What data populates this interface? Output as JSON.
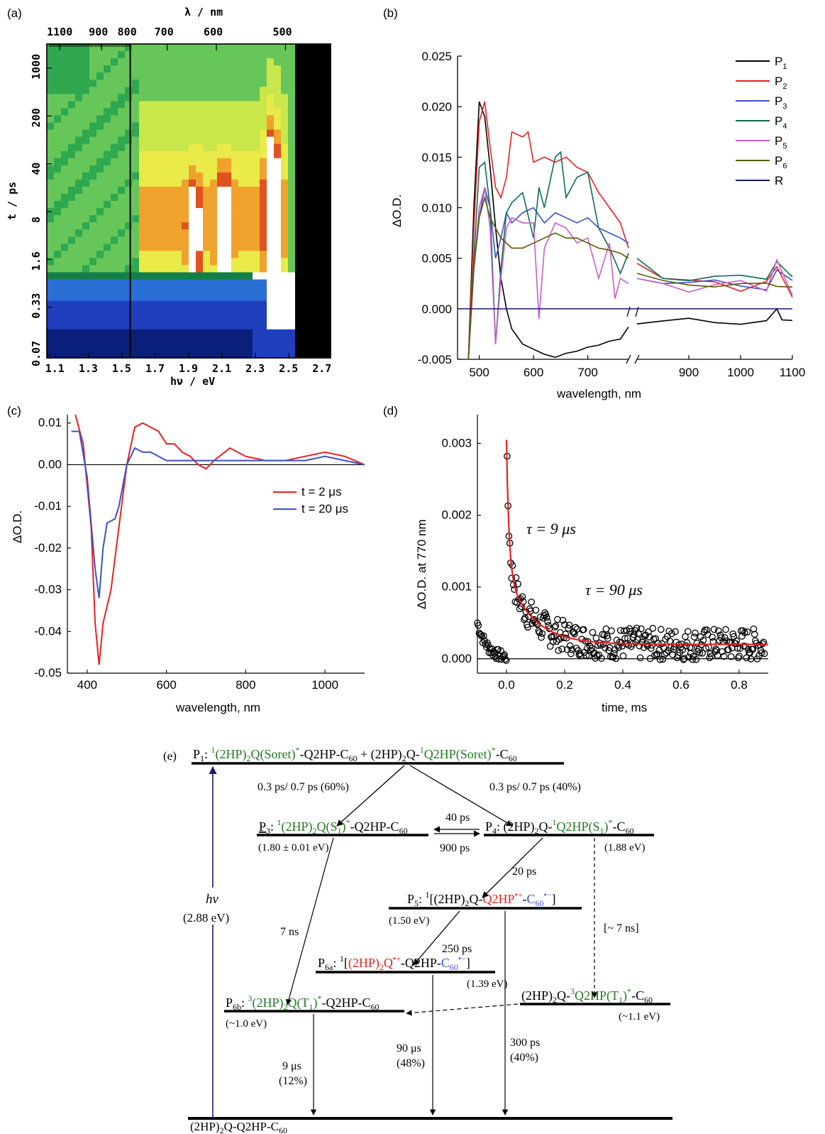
{
  "chart_data": [
    {
      "panel": "(a)",
      "type": "heatmap",
      "xlabel": "hν / eV",
      "top_label": "λ / nm",
      "ylabel": "t / ps",
      "x_ticks": [
        "1.1",
        "1.3",
        "1.5",
        "1.7",
        "1.9",
        "2.1",
        "2.3",
        "2.5",
        "2.7"
      ],
      "top_ticks": [
        "1100",
        "900",
        "800",
        "700",
        "600",
        "500"
      ],
      "y_ticks": [
        "0.07",
        "0.33",
        "1.6",
        "8",
        "40",
        "200",
        "1000"
      ],
      "xlim": [
        1.05,
        2.75
      ],
      "marker_line_eV": 1.55,
      "colors": [
        "#0a1f7a",
        "#1f3fbf",
        "#2a6fd6",
        "#127f4a",
        "#2fa84f",
        "#66c659",
        "#c9e64a",
        "#eaea48",
        "#f0a32c",
        "#e0521f",
        "#ffffff",
        "#000000"
      ]
    },
    {
      "panel": "(b)",
      "type": "line",
      "xlabel": "wavelength, nm",
      "ylabel": "ΔO.D.",
      "x_ticks": [
        "500",
        "600",
        "700",
        "900",
        "1000",
        "1100"
      ],
      "y_ticks": [
        "-0.005",
        "0.000",
        "0.005",
        "0.010",
        "0.015",
        "0.020",
        "0.025"
      ],
      "ylim": [
        -0.005,
        0.025
      ],
      "x_break": [
        775,
        800
      ],
      "series": [
        {
          "name": "P",
          "sub": "1",
          "color": "#000000",
          "x": [
            480,
            490,
            500,
            510,
            520,
            530,
            540,
            550,
            560,
            580,
            600,
            620,
            640,
            660,
            680,
            700,
            720,
            740,
            760,
            775,
            800,
            850,
            900,
            950,
            1000,
            1050,
            1070,
            1080,
            1100
          ],
          "y": [
            -0.005,
            0.01,
            0.0205,
            0.019,
            0.014,
            0.008,
            0.003,
            0.0,
            -0.002,
            -0.0035,
            -0.004,
            -0.0045,
            -0.0048,
            -0.0044,
            -0.0042,
            -0.0038,
            -0.0036,
            -0.0032,
            -0.003,
            -0.0018,
            -0.0015,
            -0.0012,
            -0.0012,
            -0.0012,
            -0.0012,
            -0.0012,
            0.0002,
            -0.0014,
            -0.0015
          ]
        },
        {
          "name": "P",
          "sub": "2",
          "color": "#e8211f",
          "x": [
            480,
            490,
            500,
            510,
            520,
            530,
            540,
            550,
            560,
            580,
            590,
            600,
            620,
            640,
            660,
            680,
            700,
            720,
            740,
            760,
            775,
            800,
            850,
            900,
            950,
            1000,
            1050,
            1070,
            1100
          ],
          "y": [
            -0.005,
            0.008,
            0.0185,
            0.0205,
            0.016,
            0.012,
            0.011,
            0.013,
            0.0175,
            0.017,
            0.0175,
            0.0145,
            0.015,
            0.0145,
            0.015,
            0.014,
            0.0135,
            0.0115,
            0.01,
            0.0085,
            0.006,
            0.0045,
            0.003,
            0.0025,
            0.0025,
            0.002,
            0.003,
            0.0045,
            0.001
          ]
        },
        {
          "name": "P",
          "sub": "3",
          "color": "#3c50c8",
          "x": [
            480,
            490,
            500,
            510,
            520,
            530,
            540,
            550,
            560,
            580,
            600,
            620,
            640,
            660,
            680,
            700,
            720,
            740,
            760,
            775,
            800,
            850,
            900,
            950,
            1000,
            1050,
            1070,
            1100
          ],
          "y": [
            -0.005,
            0.004,
            0.009,
            0.012,
            0.01,
            0.005,
            0.007,
            0.0095,
            0.0085,
            0.0095,
            0.01,
            0.0085,
            0.0095,
            0.009,
            0.0085,
            0.009,
            0.008,
            0.0075,
            0.007,
            0.0065,
            0.003,
            0.0025,
            0.0025,
            0.0025,
            0.0022,
            0.0022,
            0.004,
            0.003
          ]
        },
        {
          "name": "P",
          "sub": "4",
          "color": "#0f6b57",
          "x": [
            480,
            490,
            500,
            510,
            520,
            530,
            540,
            550,
            560,
            580,
            600,
            610,
            620,
            640,
            650,
            660,
            680,
            700,
            720,
            740,
            760,
            775,
            800,
            850,
            900,
            950,
            1000,
            1050,
            1070,
            1100
          ],
          "y": [
            -0.005,
            0.005,
            0.014,
            0.0145,
            0.01,
            -0.0035,
            0.004,
            0.0095,
            0.0105,
            0.0115,
            0.007,
            0.012,
            0.01,
            0.015,
            0.0155,
            0.011,
            0.013,
            0.0135,
            0.008,
            0.006,
            0.0035,
            0.0055,
            0.005,
            0.003,
            0.003,
            0.003,
            0.003,
            0.003,
            0.0045,
            0.0035
          ]
        },
        {
          "name": "P",
          "sub": "5",
          "color": "#c85ec8",
          "x": [
            480,
            490,
            500,
            510,
            520,
            530,
            540,
            550,
            560,
            580,
            600,
            610,
            620,
            640,
            660,
            680,
            700,
            720,
            740,
            750,
            760,
            775,
            800,
            850,
            900,
            950,
            1000,
            1050,
            1070,
            1100
          ],
          "y": [
            -0.005,
            0.004,
            0.01,
            0.012,
            0.008,
            -0.0035,
            0.003,
            0.008,
            0.009,
            0.0085,
            0.0085,
            -0.001,
            0.006,
            0.0085,
            0.008,
            0.0065,
            0.007,
            0.003,
            0.0065,
            0.001,
            0.003,
            0.0025,
            0.003,
            0.0025,
            0.002,
            0.0025,
            0.0025,
            0.0015,
            0.0045,
            0.0015
          ]
        },
        {
          "name": "P",
          "sub": "6",
          "color": "#5a5a00",
          "x": [
            480,
            490,
            500,
            510,
            520,
            530,
            540,
            550,
            560,
            580,
            600,
            620,
            640,
            660,
            680,
            700,
            720,
            740,
            760,
            775,
            800,
            850,
            900,
            950,
            1000,
            1050,
            1070,
            1100
          ],
          "y": [
            -0.005,
            0.004,
            0.009,
            0.011,
            0.009,
            0.008,
            0.007,
            0.0065,
            0.006,
            0.006,
            0.0065,
            0.007,
            0.0075,
            0.007,
            0.007,
            0.0065,
            0.006,
            0.0058,
            0.0055,
            0.005,
            0.0035,
            0.0028,
            0.0025,
            0.0025,
            0.0025,
            0.0022,
            0.002,
            0.002
          ]
        },
        {
          "name": "R",
          "sub": "",
          "color": "#1a1a6e",
          "x": [
            480,
            1100
          ],
          "y": [
            0,
            0
          ]
        }
      ]
    },
    {
      "panel": "(c)",
      "type": "line",
      "xlabel": "wavelength, nm",
      "ylabel": "ΔO.D.",
      "x_ticks": [
        "400",
        "600",
        "800",
        "1000"
      ],
      "y_ticks": [
        "-0.05",
        "-0.04",
        "-0.03",
        "-0.02",
        "-0.01",
        "0.00",
        "0.01"
      ],
      "xlim": [
        350,
        1100
      ],
      "ylim": [
        -0.05,
        0.012
      ],
      "series": [
        {
          "name": "t = 2 μs",
          "color": "#e8211f",
          "x": [
            370,
            390,
            410,
            420,
            430,
            440,
            460,
            480,
            500,
            520,
            540,
            560,
            580,
            600,
            620,
            640,
            660,
            680,
            700,
            720,
            760,
            800,
            850,
            900,
            950,
            1000,
            1050,
            1100
          ],
          "y": [
            0.012,
            0.005,
            -0.015,
            -0.038,
            -0.048,
            -0.038,
            -0.03,
            -0.015,
            0.0,
            0.009,
            0.01,
            0.009,
            0.008,
            0.005,
            0.005,
            0.003,
            0.002,
            0.0,
            -0.001,
            0.001,
            0.004,
            0.002,
            0.001,
            0.001,
            0.002,
            0.003,
            0.002,
            0.0
          ]
        },
        {
          "name": "t = 20 μs",
          "color": "#3c50c8",
          "x": [
            360,
            380,
            400,
            420,
            430,
            440,
            450,
            470,
            480,
            500,
            520,
            540,
            560,
            600,
            650,
            700,
            750,
            800,
            850,
            900,
            950,
            1000,
            1050,
            1100
          ],
          "y": [
            0.008,
            0.008,
            -0.003,
            -0.025,
            -0.032,
            -0.02,
            -0.014,
            -0.013,
            -0.01,
            0.0,
            0.004,
            0.003,
            0.003,
            0.001,
            0.001,
            0.001,
            0.001,
            0.001,
            0.001,
            0.001,
            0.001,
            0.002,
            0.001,
            0.0
          ]
        }
      ]
    },
    {
      "panel": "(d)",
      "type": "scatter",
      "xlabel": "time, ms",
      "ylabel": "ΔO.D. at 770 nm",
      "x_ticks": [
        "0.0",
        "0.2",
        "0.4",
        "0.6",
        "0.8"
      ],
      "y_ticks": [
        "0.000",
        "0.001",
        "0.002",
        "0.003"
      ],
      "xlim": [
        -0.1,
        0.9
      ],
      "ylim": [
        -0.0002,
        0.0034
      ],
      "annotations": [
        "τ = 9 μs",
        "τ = 90 μs"
      ],
      "fit": {
        "amp1": 0.0018,
        "tau1_ms": 0.009,
        "amp2": 0.001,
        "tau2_ms": 0.09,
        "offset": 0.0002,
        "color": "#e8211f"
      },
      "points_count": 320
    },
    {
      "panel": "(e)",
      "type": "diagram"
    }
  ],
  "panels": {
    "a": "(a)",
    "b": "(b)",
    "c": "(c)",
    "d": "(d)",
    "e": "(e)"
  },
  "diagram": {
    "p1_level": "P1: 1(2HP)2Q(Soret)*-Q2HP-C60 + (2HP)2Q-1Q2HP(Soret)*-C60",
    "p3_level": "P3: 1(2HP)2Q(S1)*-Q2HP-C60",
    "p3_energy": "(1.80 ± 0.01 eV)",
    "p4_level": "P4: (2HP)2Q-1Q2HP(S1)*-C60",
    "p4_energy": "(1.88 eV)",
    "p5_level": "P5: 1[(2HP)2Q-Q2HP•+-C60•−]",
    "p5_energy": "(1.50 eV)",
    "p6a_level": "P6a: 1[(2HP)2Q•+-Q2HP-C60•−]",
    "p6a_energy": "(1.39 eV)",
    "p6b_level": "P6b: 3(2HP)2Q(T1)*-Q2HP-C60",
    "p6b_energy": "(~1.0 eV)",
    "t1_level": "(2HP)2Q-3Q2HP(T1)*-C60",
    "t1_energy": "(~1.1 eV)",
    "ground": "(2HP)2Q-Q2HP-C60",
    "hv": "hν",
    "hv_energy": "(2.88 eV)",
    "k_p1_p3": "0.3 ps/ 0.7 ps (60%)",
    "k_p1_p4": "0.3 ps/ 0.7 ps (40%)",
    "k_fwd": "40 ps",
    "k_back": "900 ps",
    "k_p4_p5": "20 ps",
    "k_p3_p6b": "7 ns",
    "k_p4_t1": "[~ 7 ns]",
    "k_p5_p6a": "250 ps",
    "k_9us": "9 μs",
    "k_9us_pct": "(12%)",
    "k_90us": "90 μs",
    "k_90us_pct": "(48%)",
    "k_300ps": "300 ps",
    "k_300ps_pct": "(40%)"
  }
}
